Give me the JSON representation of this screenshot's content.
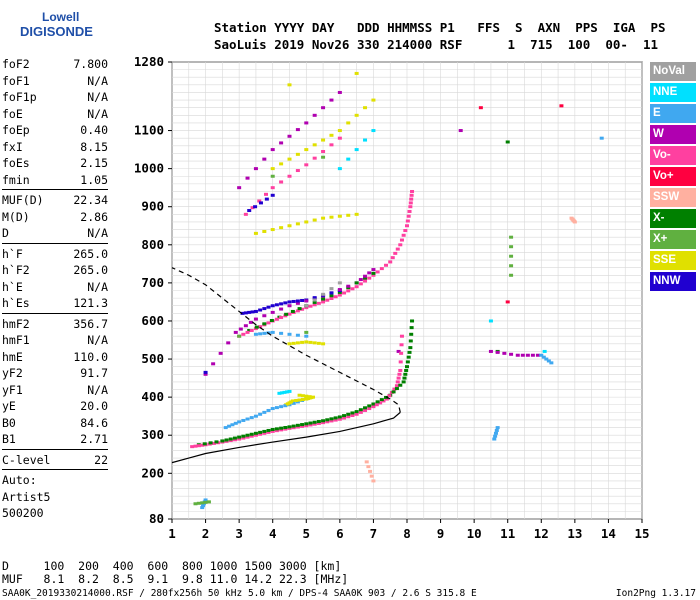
{
  "logo": {
    "line1": "Lowell",
    "line2": "DIGISONDE"
  },
  "header": {
    "line1": "Station YYYY DAY   DDD HHMMSS P1   FFS  S  AXN  PPS  IGA  PS",
    "line2": "SaoLuis 2019 Nov26 330 214000 RSF      1  715  100  00-  11"
  },
  "params": [
    {
      "name": "foF2",
      "value": "7.800"
    },
    {
      "name": "foF1",
      "value": "N/A"
    },
    {
      "name": "foF1p",
      "value": "N/A"
    },
    {
      "name": "foE",
      "value": "N/A"
    },
    {
      "name": "foEp",
      "value": "0.40"
    },
    {
      "name": "fxI",
      "value": "8.15"
    },
    {
      "name": "foEs",
      "value": "2.15"
    },
    {
      "name": "fmin",
      "value": "1.05"
    },
    {
      "sep": true
    },
    {
      "name": "MUF(D)",
      "value": "22.34"
    },
    {
      "name": "M(D)",
      "value": "2.86"
    },
    {
      "name": "D",
      "value": "N/A"
    },
    {
      "sep": true
    },
    {
      "name": "h`F",
      "value": "265.0"
    },
    {
      "name": "h`F2",
      "value": "265.0"
    },
    {
      "name": "h`E",
      "value": "N/A"
    },
    {
      "name": "h`Es",
      "value": "121.3"
    },
    {
      "sep": true
    },
    {
      "name": "hmF2",
      "value": "356.7"
    },
    {
      "name": "hmF1",
      "value": "N/A"
    },
    {
      "name": "hmE",
      "value": "110.0"
    },
    {
      "name": "yF2",
      "value": "91.7"
    },
    {
      "name": "yF1",
      "value": "N/A"
    },
    {
      "name": "yE",
      "value": "20.0"
    },
    {
      "name": "B0",
      "value": "84.6"
    },
    {
      "name": "B1",
      "value": "2.71"
    },
    {
      "sep": true
    },
    {
      "name": "C-level",
      "value": "22"
    },
    {
      "sep": true
    }
  ],
  "auto": {
    "line1": "Auto:",
    "line2": "Artist5",
    "line3": "500200"
  },
  "legend": [
    {
      "label": "NoVal",
      "color": "#a0a0a0"
    },
    {
      "label": "NNE",
      "color": "#00e0ff"
    },
    {
      "label": "E",
      "color": "#40a8f0"
    },
    {
      "label": "W",
      "color": "#b000b0"
    },
    {
      "label": "Vo-",
      "color": "#ff40a0"
    },
    {
      "label": "Vo+",
      "color": "#ff0040"
    },
    {
      "label": "SSW",
      "color": "#ffb0a0"
    },
    {
      "label": "X-",
      "color": "#008000"
    },
    {
      "label": "X+",
      "color": "#60b040"
    },
    {
      "label": "SSE",
      "color": "#e0e000"
    },
    {
      "label": "NNW",
      "color": "#2000d0"
    }
  ],
  "dtable": {
    "row1": "D     100  200  400  600  800 1000 1500 3000 [km]",
    "row2": "MUF   8.1  8.2  8.5  9.1  9.8 11.0 14.2 22.3 [MHz]"
  },
  "footer": "SAA0K_2019330214000.RSF / 280fx256h 50 kHz 5.0 km / DPS-4 SAA0K 903 / 2.6 S 315.8 E",
  "version": "Ion2Png 1.3.17",
  "chart_data": {
    "type": "scatter",
    "xlim": [
      1,
      15
    ],
    "ylim": [
      80,
      1280
    ],
    "x_ticks": [
      1,
      2,
      3,
      4,
      5,
      6,
      7,
      8,
      9,
      10,
      11,
      12,
      13,
      14,
      15
    ],
    "y_ticks": [
      80,
      200,
      300,
      400,
      500,
      600,
      700,
      800,
      900,
      1000,
      1100,
      1280
    ],
    "grid": true,
    "series": [
      {
        "name": "Vo-",
        "color": "#ff40a0",
        "points": [
          [
            1.6,
            270
          ],
          [
            2.0,
            275
          ],
          [
            2.5,
            282
          ],
          [
            3.0,
            290
          ],
          [
            3.5,
            300
          ],
          [
            4.0,
            310
          ],
          [
            4.5,
            318
          ],
          [
            5.0,
            325
          ],
          [
            5.5,
            333
          ],
          [
            6.0,
            342
          ],
          [
            6.5,
            355
          ],
          [
            7.0,
            375
          ],
          [
            7.4,
            395
          ],
          [
            7.7,
            430
          ],
          [
            7.8,
            470
          ],
          [
            7.85,
            560
          ],
          [
            3.0,
            560
          ],
          [
            3.5,
            580
          ],
          [
            4.0,
            600
          ],
          [
            4.5,
            618
          ],
          [
            5.0,
            635
          ],
          [
            5.5,
            650
          ],
          [
            6.0,
            668
          ],
          [
            6.5,
            690
          ],
          [
            7.0,
            720
          ],
          [
            7.5,
            755
          ],
          [
            7.8,
            800
          ],
          [
            8.0,
            850
          ],
          [
            8.1,
            900
          ],
          [
            8.15,
            940
          ],
          [
            3.2,
            880
          ],
          [
            4.0,
            950
          ],
          [
            5.0,
            1010
          ],
          [
            6.0,
            1080
          ]
        ]
      },
      {
        "name": "X-",
        "color": "#008000",
        "points": [
          [
            1.8,
            275
          ],
          [
            2.5,
            285
          ],
          [
            3.0,
            295
          ],
          [
            3.5,
            305
          ],
          [
            4.0,
            315
          ],
          [
            4.5,
            322
          ],
          [
            5.0,
            330
          ],
          [
            5.5,
            338
          ],
          [
            6.0,
            348
          ],
          [
            6.5,
            362
          ],
          [
            7.0,
            382
          ],
          [
            7.5,
            405
          ],
          [
            7.9,
            440
          ],
          [
            8.0,
            480
          ],
          [
            8.1,
            530
          ],
          [
            8.15,
            600
          ],
          [
            3.3,
            575
          ],
          [
            4.2,
            610
          ],
          [
            5.0,
            640
          ],
          [
            6.0,
            675
          ],
          [
            7.0,
            725
          ],
          [
            10.7,
            520
          ],
          [
            11.0,
            1070
          ]
        ]
      },
      {
        "name": "W",
        "color": "#b000b0",
        "points": [
          [
            2.0,
            460
          ],
          [
            2.9,
            570
          ],
          [
            3.5,
            605
          ],
          [
            4.5,
            640
          ],
          [
            5.5,
            665
          ],
          [
            6.5,
            700
          ],
          [
            7.0,
            735
          ],
          [
            7.75,
            520
          ],
          [
            3.0,
            950
          ],
          [
            4.0,
            1050
          ],
          [
            5.0,
            1120
          ],
          [
            6.0,
            1200
          ],
          [
            10.5,
            520
          ],
          [
            11.3,
            510
          ],
          [
            11.9,
            510
          ],
          [
            9.6,
            1100
          ]
        ]
      },
      {
        "name": "E",
        "color": "#40a8f0",
        "points": [
          [
            1.9,
            110
          ],
          [
            2.0,
            130
          ],
          [
            2.6,
            320
          ],
          [
            3.0,
            335
          ],
          [
            3.5,
            350
          ],
          [
            4.0,
            370
          ],
          [
            4.5,
            380
          ],
          [
            5.0,
            395
          ],
          [
            3.5,
            565
          ],
          [
            4.0,
            570
          ],
          [
            5.0,
            560
          ],
          [
            12.0,
            510
          ],
          [
            12.3,
            490
          ],
          [
            13.8,
            1080
          ],
          [
            10.7,
            320
          ],
          [
            10.6,
            290
          ]
        ]
      },
      {
        "name": "SSE",
        "color": "#e0e000",
        "points": [
          [
            4.4,
            380
          ],
          [
            4.6,
            390
          ],
          [
            5.0,
            395
          ],
          [
            5.2,
            400
          ],
          [
            4.8,
            405
          ],
          [
            4.5,
            540
          ],
          [
            5.0,
            545
          ],
          [
            5.5,
            540
          ],
          [
            3.5,
            830
          ],
          [
            4.5,
            850
          ],
          [
            5.5,
            870
          ],
          [
            6.5,
            880
          ],
          [
            4.0,
            1000
          ],
          [
            5.0,
            1050
          ],
          [
            6.0,
            1100
          ],
          [
            7.0,
            1180
          ],
          [
            4.5,
            1220
          ],
          [
            6.5,
            1250
          ]
        ]
      },
      {
        "name": "NNW",
        "color": "#2000d0",
        "points": [
          [
            3.1,
            620
          ],
          [
            3.5,
            625
          ],
          [
            4.0,
            640
          ],
          [
            4.5,
            650
          ],
          [
            5.0,
            655
          ],
          [
            6.0,
            680
          ],
          [
            3.3,
            890
          ],
          [
            4.0,
            930
          ],
          [
            2.0,
            465
          ]
        ]
      },
      {
        "name": "NNE",
        "color": "#00e0ff",
        "points": [
          [
            4.2,
            410
          ],
          [
            4.5,
            415
          ],
          [
            6.0,
            1000
          ],
          [
            7.0,
            1100
          ],
          [
            10.5,
            600
          ],
          [
            12.1,
            520
          ]
        ]
      },
      {
        "name": "X+",
        "color": "#60b040",
        "points": [
          [
            1.7,
            120
          ],
          [
            2.1,
            125
          ],
          [
            3.0,
            560
          ],
          [
            5.0,
            570
          ],
          [
            4.0,
            980
          ],
          [
            5.5,
            1030
          ],
          [
            11.1,
            820
          ],
          [
            11.1,
            720
          ]
        ]
      },
      {
        "name": "SSW",
        "color": "#ffb0a0",
        "points": [
          [
            12.9,
            870
          ],
          [
            13.0,
            860
          ],
          [
            6.8,
            230
          ],
          [
            7.0,
            180
          ]
        ]
      },
      {
        "name": "NoVal",
        "color": "#a0a0a0",
        "points": [
          [
            5.0,
            640
          ],
          [
            6.0,
            700
          ]
        ]
      },
      {
        "name": "Vo+",
        "color": "#ff0040",
        "points": [
          [
            10.2,
            1160
          ],
          [
            12.6,
            1165
          ],
          [
            11.0,
            650
          ]
        ]
      }
    ],
    "profile_curve": [
      [
        1.0,
        228
      ],
      [
        1.5,
        240
      ],
      [
        2.0,
        252
      ],
      [
        3.0,
        268
      ],
      [
        4.0,
        282
      ],
      [
        5.0,
        295
      ],
      [
        6.0,
        310
      ],
      [
        7.0,
        330
      ],
      [
        7.6,
        345
      ],
      [
        7.8,
        360
      ],
      [
        7.75,
        380
      ],
      [
        7.5,
        395
      ],
      [
        7.0,
        420
      ],
      [
        6.0,
        465
      ],
      [
        5.0,
        510
      ],
      [
        4.0,
        560
      ],
      [
        3.5,
        590
      ],
      [
        3.0,
        625
      ],
      [
        2.5,
        660
      ],
      [
        2.0,
        695
      ],
      [
        1.5,
        720
      ],
      [
        1.0,
        740
      ]
    ]
  }
}
